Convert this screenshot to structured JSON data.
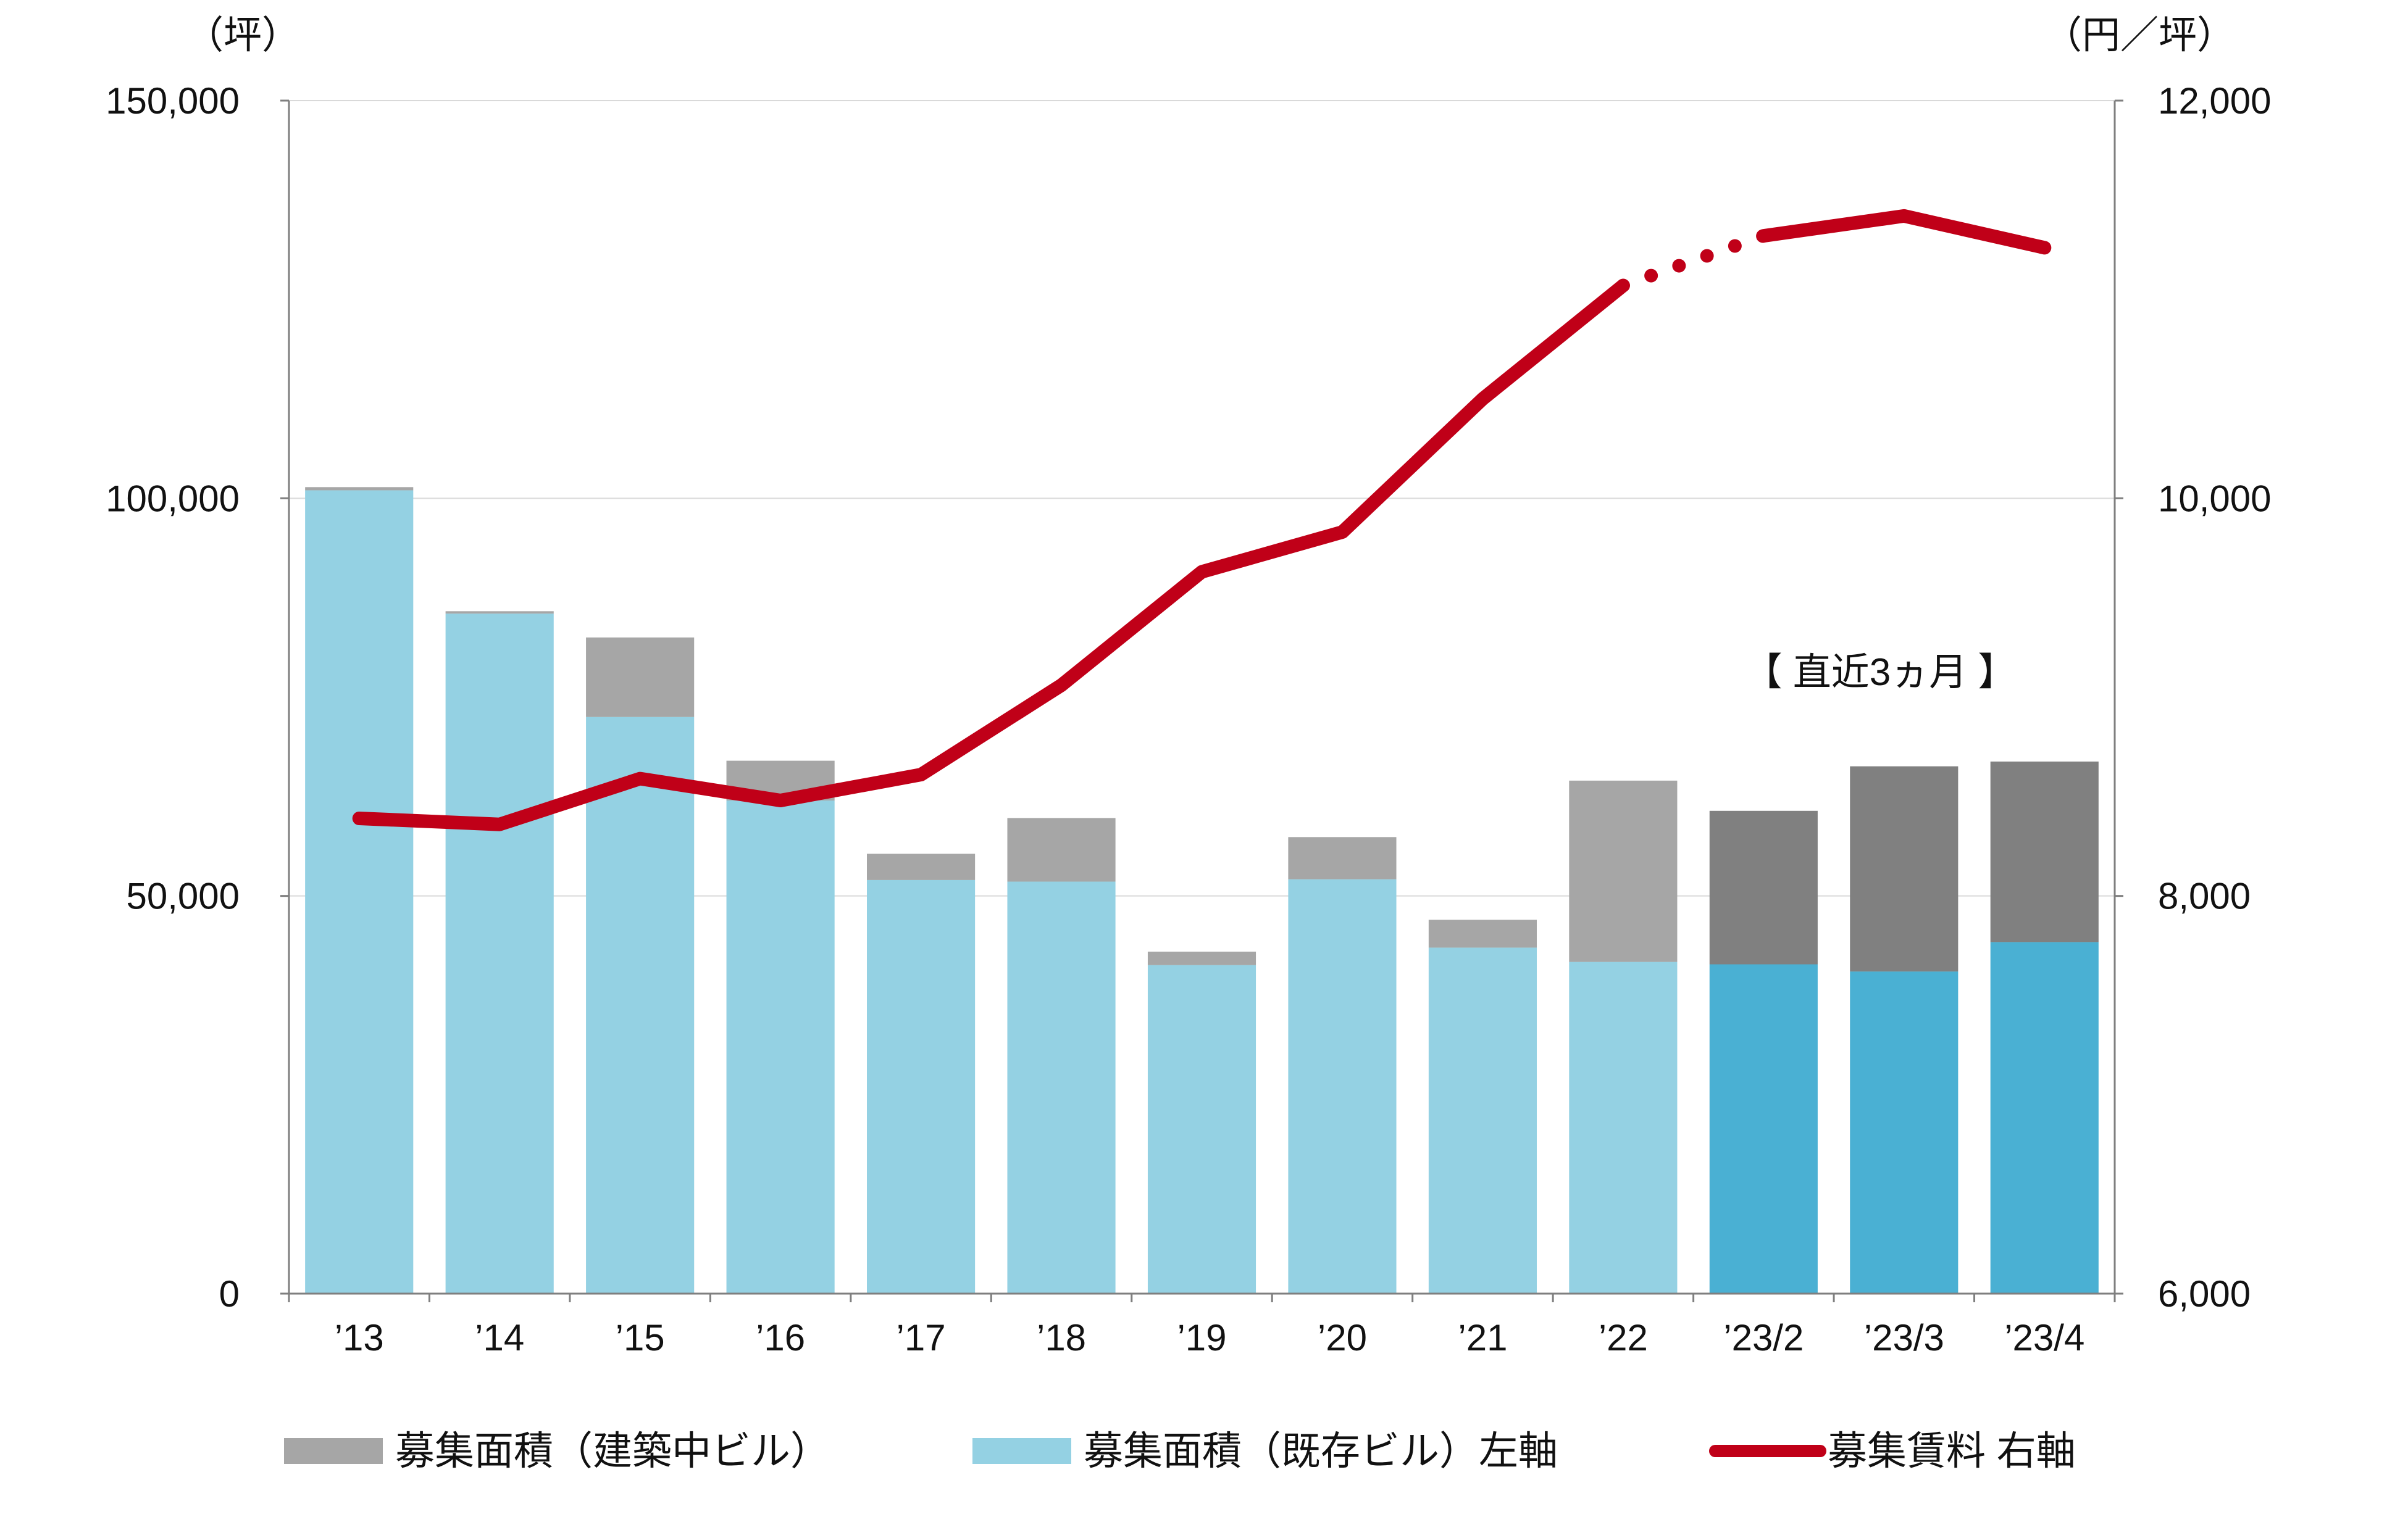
{
  "chart_data": {
    "type": "bar",
    "categories": [
      "’13",
      "’14",
      "’15",
      "’16",
      "’17",
      "’18",
      "’19",
      "’20",
      "’21",
      "’22",
      "’23/2",
      "’23/3",
      "’23/4"
    ],
    "series": [
      {
        "name": "募集面積（既存ビル）左軸",
        "type": "bar",
        "stack": "area",
        "axis": "left",
        "values": [
          101000,
          85500,
          72500,
          62000,
          52000,
          51800,
          41300,
          52100,
          43500,
          41700,
          41400,
          40500,
          44200
        ],
        "colors": [
          "#94d1e3",
          "#94d1e3",
          "#94d1e3",
          "#94d1e3",
          "#94d1e3",
          "#94d1e3",
          "#94d1e3",
          "#94d1e3",
          "#94d1e3",
          "#94d1e3",
          "#4ab0d3",
          "#4ab0d3",
          "#4ab0d3"
        ]
      },
      {
        "name": "募集面積（建築中ビル）",
        "type": "bar",
        "stack": "area",
        "axis": "left",
        "values": [
          400,
          300,
          10000,
          5000,
          3300,
          8000,
          1700,
          5300,
          3500,
          22800,
          19300,
          25800,
          22700
        ],
        "colors": [
          "#a6a6a6",
          "#a6a6a6",
          "#a6a6a6",
          "#a6a6a6",
          "#a6a6a6",
          "#a6a6a6",
          "#a6a6a6",
          "#a6a6a6",
          "#a6a6a6",
          "#a6a6a6",
          "#808080",
          "#808080",
          "#808080"
        ]
      },
      {
        "name": "募集賃料 右軸",
        "type": "line",
        "axis": "right",
        "color": "#c00018",
        "values": [
          8390,
          8360,
          8590,
          8480,
          8610,
          9060,
          9630,
          9830,
          10500,
          11070,
          11320,
          11420,
          11260
        ],
        "dotted_between": [
          9,
          10
        ]
      }
    ],
    "axes": {
      "left": {
        "unit": "（坪）",
        "ylim": [
          0,
          150000
        ],
        "ticks": [
          0,
          50000,
          100000,
          150000
        ],
        "tick_labels": [
          "0",
          "50,000",
          "100,000",
          "150,000"
        ]
      },
      "right": {
        "unit": "（円／坪）",
        "ylim": [
          6000,
          12000
        ],
        "ticks": [
          6000,
          8000,
          10000,
          12000
        ],
        "tick_labels": [
          "6,000",
          "8,000",
          "10,000",
          "12,000"
        ]
      }
    },
    "grid": true,
    "annotation": "【 直近3ヵ月 】",
    "legend": {
      "position": "bottom",
      "items": [
        {
          "label": "募集面積（建築中ビル）",
          "color": "#a6a6a6",
          "kind": "bar"
        },
        {
          "label": "募集面積（既存ビル）左軸",
          "color": "#94d1e3",
          "kind": "bar"
        },
        {
          "label": "募集賃料 右軸",
          "color": "#c00018",
          "kind": "line"
        }
      ]
    }
  }
}
